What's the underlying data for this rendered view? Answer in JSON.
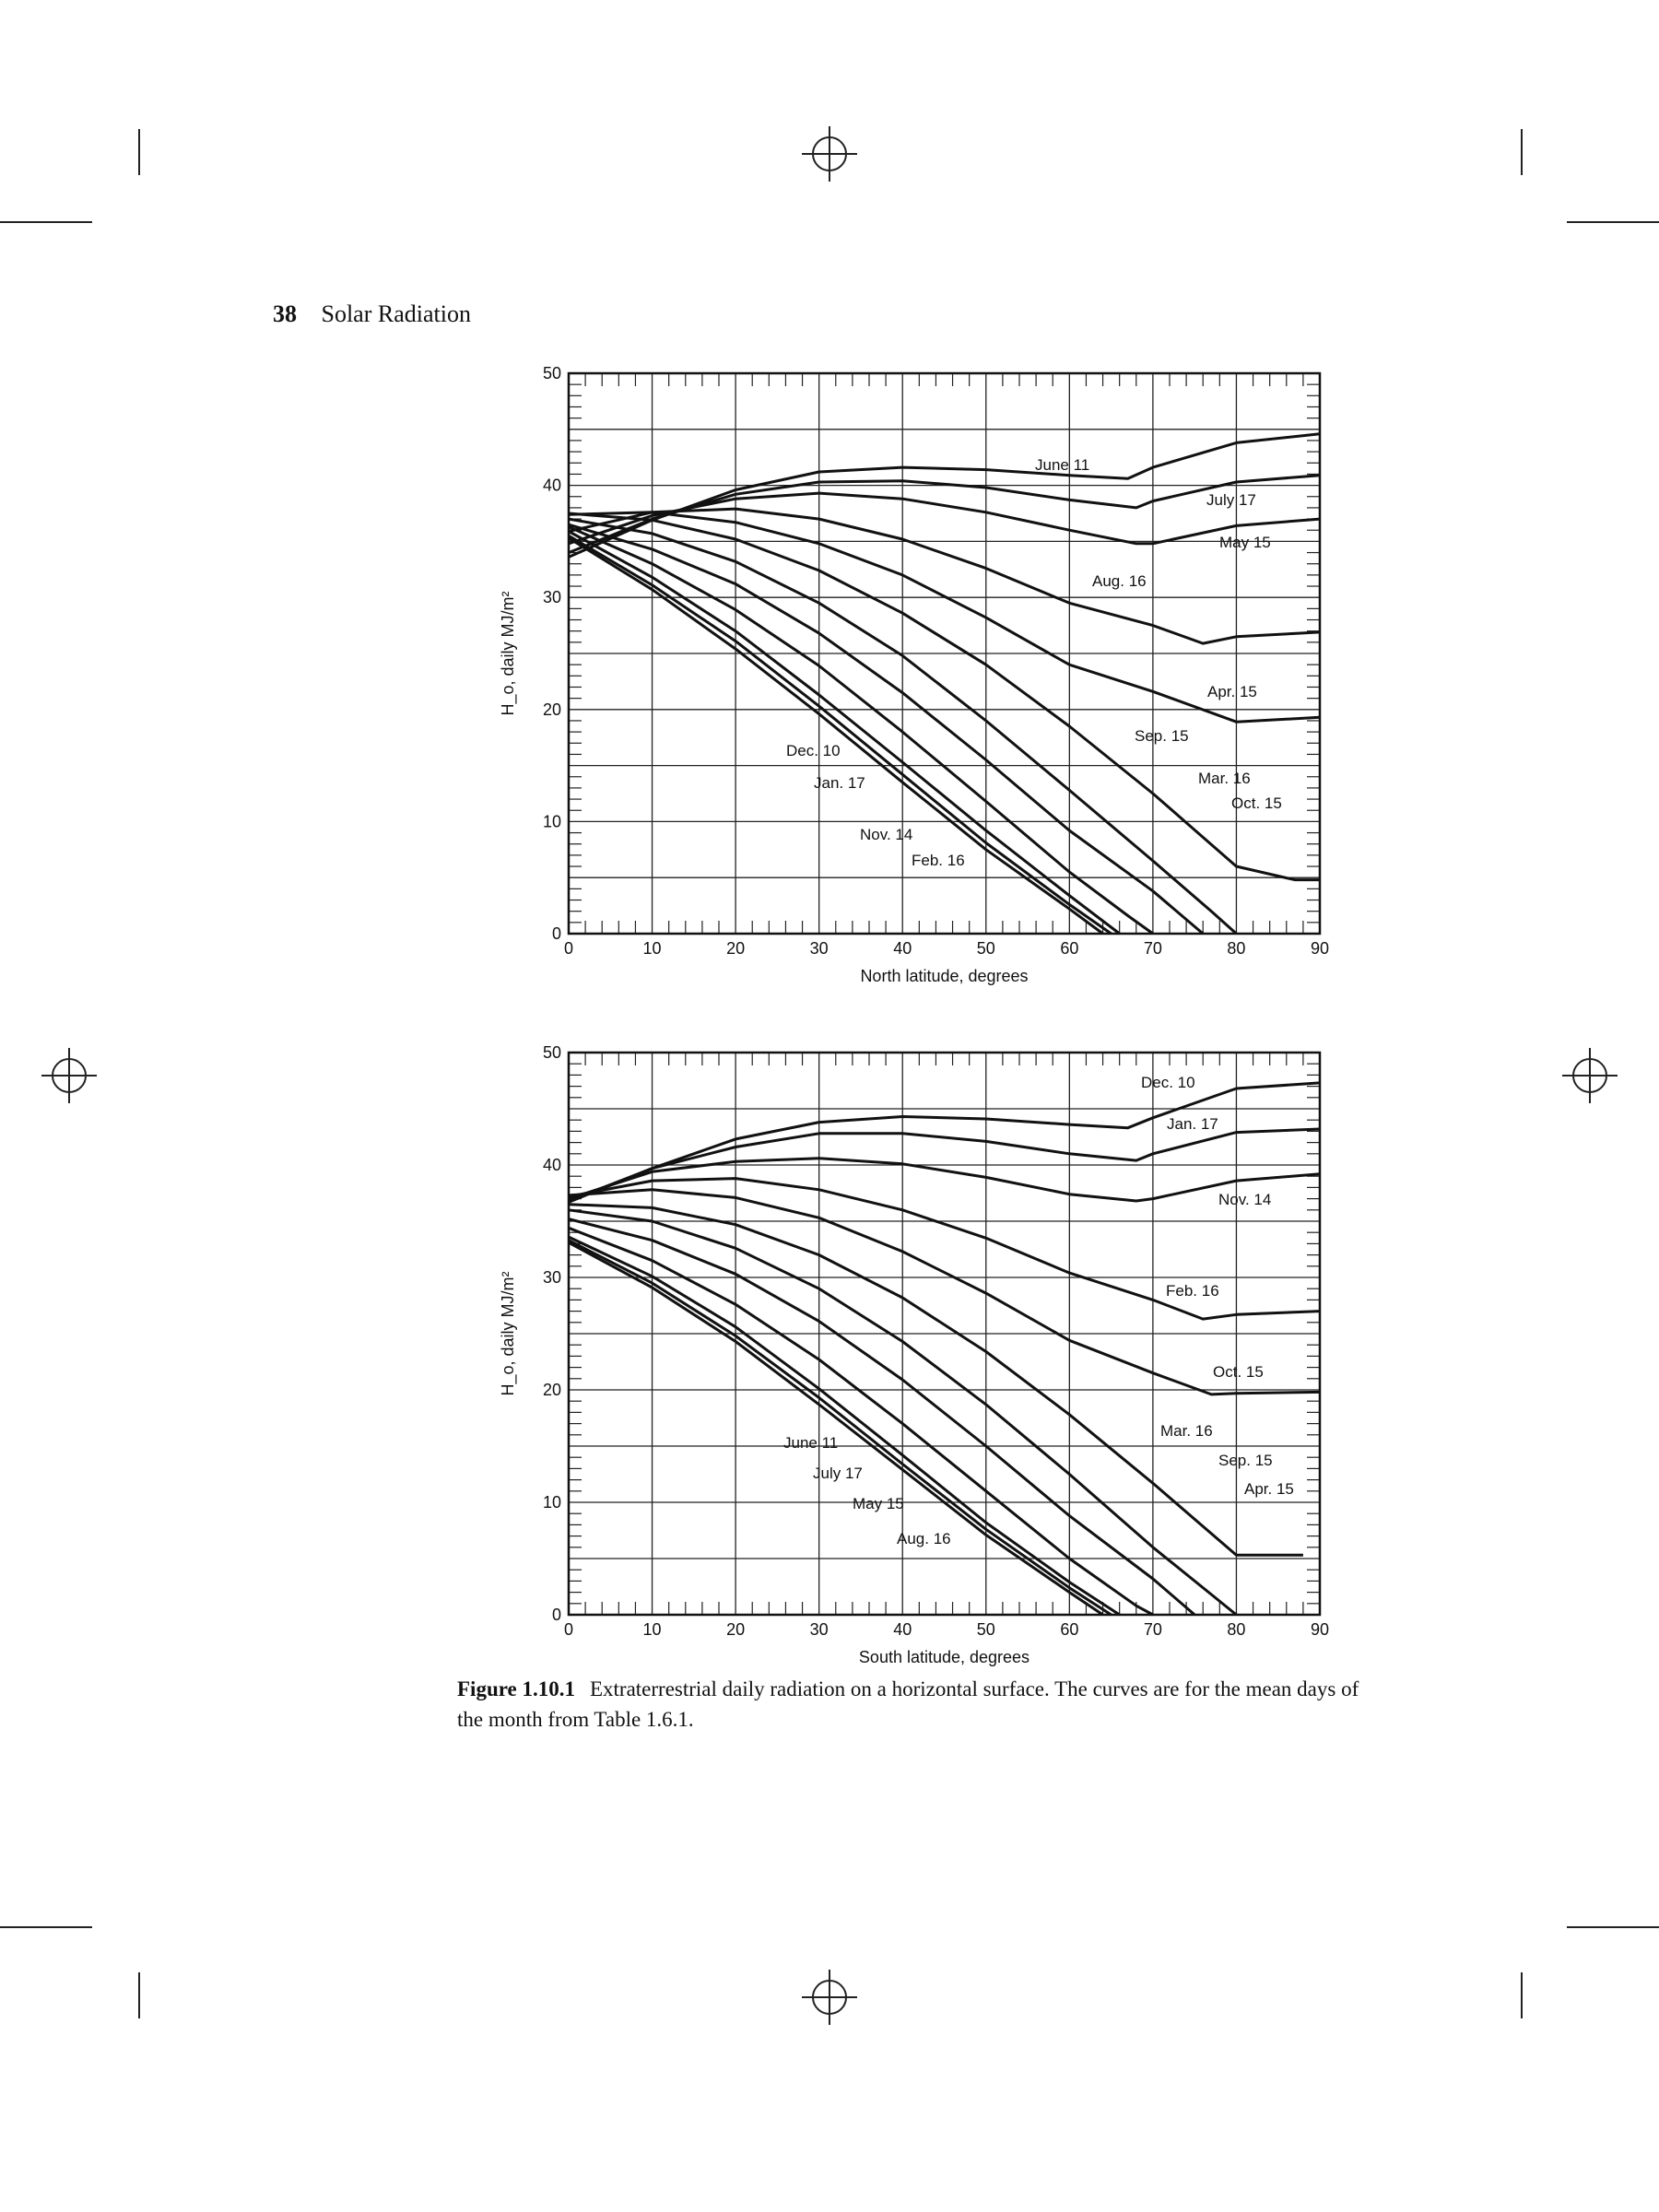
{
  "header": {
    "page_number": "38",
    "running_title": "Solar Radiation"
  },
  "caption": {
    "figure_label": "Figure 1.10.1",
    "text": "Extraterrestrial daily radiation on a horizontal surface. The curves are for the mean days of the month from Table 1.6.1."
  },
  "chart_data": [
    {
      "type": "line",
      "id": "north",
      "xlabel": "North latitude, degrees",
      "ylabel": "H_o, daily MJ/m²",
      "xlim": [
        0,
        90
      ],
      "ylim": [
        0,
        50
      ],
      "xticks": [
        0,
        10,
        20,
        30,
        40,
        50,
        60,
        70,
        80,
        90
      ],
      "yticks": [
        0,
        10,
        20,
        30,
        40,
        50
      ],
      "grid": true,
      "series": [
        {
          "name": "June 11",
          "points": [
            [
              0,
              33.6
            ],
            [
              10,
              36.9
            ],
            [
              20,
              39.6
            ],
            [
              30,
              41.2
            ],
            [
              40,
              41.6
            ],
            [
              50,
              41.4
            ],
            [
              60,
              40.9
            ],
            [
              67,
              40.6
            ],
            [
              70,
              41.6
            ],
            [
              80,
              43.8
            ],
            [
              90,
              44.6
            ]
          ]
        },
        {
          "name": "July 17",
          "points": [
            [
              0,
              34.0
            ],
            [
              10,
              37.0
            ],
            [
              20,
              39.2
            ],
            [
              30,
              40.3
            ],
            [
              40,
              40.4
            ],
            [
              50,
              39.8
            ],
            [
              60,
              38.7
            ],
            [
              68,
              38.0
            ],
            [
              70,
              38.6
            ],
            [
              80,
              40.3
            ],
            [
              90,
              40.9
            ]
          ]
        },
        {
          "name": "May 15",
          "points": [
            [
              0,
              34.8
            ],
            [
              10,
              37.3
            ],
            [
              20,
              38.8
            ],
            [
              30,
              39.3
            ],
            [
              40,
              38.8
            ],
            [
              50,
              37.6
            ],
            [
              60,
              36.0
            ],
            [
              68,
              34.8
            ],
            [
              70,
              34.8
            ],
            [
              80,
              36.4
            ],
            [
              90,
              37.0
            ]
          ]
        },
        {
          "name": "Aug. 16",
          "points": [
            [
              0,
              35.9
            ],
            [
              10,
              37.6
            ],
            [
              20,
              37.9
            ],
            [
              30,
              37.0
            ],
            [
              40,
              35.2
            ],
            [
              50,
              32.6
            ],
            [
              60,
              29.5
            ],
            [
              70,
              27.5
            ],
            [
              76,
              25.9
            ],
            [
              80,
              26.5
            ],
            [
              90,
              26.9
            ]
          ]
        },
        {
          "name": "Apr. 15",
          "points": [
            [
              0,
              37.4
            ],
            [
              10,
              37.6
            ],
            [
              20,
              36.7
            ],
            [
              30,
              34.8
            ],
            [
              40,
              32.0
            ],
            [
              50,
              28.2
            ],
            [
              60,
              24.0
            ],
            [
              70,
              21.6
            ],
            [
              80,
              18.9
            ],
            [
              90,
              19.3
            ]
          ]
        },
        {
          "name": "Sep. 15",
          "points": [
            [
              0,
              37.5
            ],
            [
              10,
              36.9
            ],
            [
              20,
              35.2
            ],
            [
              30,
              32.4
            ],
            [
              40,
              28.6
            ],
            [
              50,
              24.0
            ],
            [
              60,
              18.5
            ],
            [
              70,
              12.5
            ],
            [
              80,
              6.0
            ],
            [
              87,
              4.8
            ],
            [
              90,
              4.8
            ]
          ]
        },
        {
          "name": "Mar. 16",
          "points": [
            [
              0,
              37.0
            ],
            [
              10,
              35.7
            ],
            [
              20,
              33.2
            ],
            [
              30,
              29.5
            ],
            [
              40,
              24.8
            ],
            [
              50,
              19.0
            ],
            [
              60,
              12.8
            ],
            [
              70,
              6.5
            ],
            [
              77,
              2.0
            ],
            [
              80,
              0.0
            ]
          ]
        },
        {
          "name": "Oct. 15",
          "points": [
            [
              0,
              36.5
            ],
            [
              10,
              34.3
            ],
            [
              20,
              31.2
            ],
            [
              30,
              26.8
            ],
            [
              40,
              21.5
            ],
            [
              50,
              15.5
            ],
            [
              60,
              9.2
            ],
            [
              70,
              3.8
            ],
            [
              76,
              0.0
            ]
          ]
        },
        {
          "name": "Feb. 16",
          "points": [
            [
              0,
              36.3
            ],
            [
              10,
              33.0
            ],
            [
              20,
              28.9
            ],
            [
              30,
              23.9
            ],
            [
              40,
              18.0
            ],
            [
              50,
              11.8
            ],
            [
              60,
              5.5
            ],
            [
              67,
              1.6
            ],
            [
              70,
              0.0
            ]
          ]
        },
        {
          "name": "Nov. 14",
          "points": [
            [
              0,
              35.9
            ],
            [
              10,
              31.8
            ],
            [
              20,
              27.0
            ],
            [
              30,
              21.3
            ],
            [
              40,
              15.3
            ],
            [
              50,
              9.2
            ],
            [
              60,
              3.4
            ],
            [
              66,
              0.0
            ]
          ]
        },
        {
          "name": "Jan. 17",
          "points": [
            [
              0,
              35.5
            ],
            [
              10,
              31.1
            ],
            [
              20,
              26.1
            ],
            [
              30,
              20.3
            ],
            [
              40,
              14.2
            ],
            [
              50,
              8.1
            ],
            [
              60,
              2.6
            ],
            [
              65,
              0.0
            ]
          ]
        },
        {
          "name": "Dec. 10",
          "points": [
            [
              0,
              35.3
            ],
            [
              10,
              30.7
            ],
            [
              20,
              25.4
            ],
            [
              30,
              19.6
            ],
            [
              40,
              13.5
            ],
            [
              50,
              7.5
            ],
            [
              60,
              2.2
            ],
            [
              64,
              0.0
            ]
          ]
        }
      ]
    },
    {
      "type": "line",
      "id": "south",
      "xlabel": "South latitude, degrees",
      "ylabel": "H_o, daily MJ/m²",
      "xlim": [
        0,
        90
      ],
      "ylim": [
        0,
        50
      ],
      "xticks": [
        0,
        10,
        20,
        30,
        40,
        50,
        60,
        70,
        80,
        90
      ],
      "yticks": [
        0,
        10,
        20,
        30,
        40,
        50
      ],
      "grid": true,
      "series": [
        {
          "name": "Dec. 10",
          "points": [
            [
              0,
              36.7
            ],
            [
              10,
              39.7
            ],
            [
              20,
              42.3
            ],
            [
              30,
              43.8
            ],
            [
              40,
              44.3
            ],
            [
              50,
              44.1
            ],
            [
              60,
              43.6
            ],
            [
              67,
              43.3
            ],
            [
              70,
              44.2
            ],
            [
              80,
              46.8
            ],
            [
              90,
              47.3
            ]
          ]
        },
        {
          "name": "Jan. 17",
          "points": [
            [
              0,
              36.8
            ],
            [
              10,
              39.7
            ],
            [
              20,
              41.6
            ],
            [
              30,
              42.8
            ],
            [
              40,
              42.8
            ],
            [
              50,
              42.1
            ],
            [
              60,
              41.0
            ],
            [
              68,
              40.4
            ],
            [
              70,
              41.0
            ],
            [
              80,
              42.9
            ],
            [
              90,
              43.2
            ]
          ]
        },
        {
          "name": "Nov. 14",
          "points": [
            [
              0,
              37.0
            ],
            [
              10,
              39.4
            ],
            [
              20,
              40.3
            ],
            [
              30,
              40.6
            ],
            [
              40,
              40.1
            ],
            [
              50,
              38.9
            ],
            [
              60,
              37.4
            ],
            [
              68,
              36.8
            ],
            [
              70,
              37.0
            ],
            [
              80,
              38.6
            ],
            [
              90,
              39.2
            ]
          ]
        },
        {
          "name": "Feb. 16",
          "points": [
            [
              0,
              37.2
            ],
            [
              10,
              38.6
            ],
            [
              20,
              38.8
            ],
            [
              30,
              37.8
            ],
            [
              40,
              36.0
            ],
            [
              50,
              33.5
            ],
            [
              60,
              30.4
            ],
            [
              70,
              28.0
            ],
            [
              76,
              26.3
            ],
            [
              80,
              26.7
            ],
            [
              90,
              27.0
            ]
          ]
        },
        {
          "name": "Oct. 15",
          "points": [
            [
              0,
              37.3
            ],
            [
              10,
              37.8
            ],
            [
              20,
              37.1
            ],
            [
              30,
              35.3
            ],
            [
              40,
              32.3
            ],
            [
              50,
              28.6
            ],
            [
              60,
              24.4
            ],
            [
              70,
              21.5
            ],
            [
              77,
              19.6
            ],
            [
              80,
              19.7
            ],
            [
              90,
              19.8
            ]
          ]
        },
        {
          "name": "Mar. 16",
          "points": [
            [
              0,
              36.5
            ],
            [
              10,
              36.2
            ],
            [
              20,
              34.7
            ],
            [
              30,
              32.0
            ],
            [
              40,
              28.2
            ],
            [
              50,
              23.4
            ],
            [
              60,
              17.8
            ],
            [
              70,
              11.7
            ],
            [
              80,
              5.3
            ],
            [
              88,
              5.3
            ]
          ]
        },
        {
          "name": "Sep. 15",
          "points": [
            [
              0,
              36.0
            ],
            [
              10,
              35.0
            ],
            [
              20,
              32.6
            ],
            [
              30,
              29.0
            ],
            [
              40,
              24.3
            ],
            [
              50,
              18.7
            ],
            [
              60,
              12.5
            ],
            [
              70,
              6.0
            ],
            [
              77,
              1.8
            ],
            [
              80,
              0.0
            ]
          ]
        },
        {
          "name": "Apr. 15",
          "points": [
            [
              0,
              35.2
            ],
            [
              10,
              33.3
            ],
            [
              20,
              30.3
            ],
            [
              30,
              26.1
            ],
            [
              40,
              20.9
            ],
            [
              50,
              15.0
            ],
            [
              60,
              8.8
            ],
            [
              70,
              3.2
            ],
            [
              75,
              0.0
            ]
          ]
        },
        {
          "name": "Aug. 16",
          "points": [
            [
              0,
              34.4
            ],
            [
              10,
              31.5
            ],
            [
              20,
              27.6
            ],
            [
              30,
              22.7
            ],
            [
              40,
              17.0
            ],
            [
              50,
              11.0
            ],
            [
              60,
              5.0
            ],
            [
              68,
              0.8
            ],
            [
              70,
              0.0
            ]
          ]
        },
        {
          "name": "May 15",
          "points": [
            [
              0,
              33.6
            ],
            [
              10,
              30.1
            ],
            [
              20,
              25.6
            ],
            [
              30,
              20.1
            ],
            [
              40,
              14.2
            ],
            [
              50,
              8.2
            ],
            [
              60,
              2.9
            ],
            [
              66,
              0.0
            ]
          ]
        },
        {
          "name": "July 17",
          "points": [
            [
              0,
              33.3
            ],
            [
              10,
              29.5
            ],
            [
              20,
              24.8
            ],
            [
              30,
              19.3
            ],
            [
              40,
              13.4
            ],
            [
              50,
              7.6
            ],
            [
              60,
              2.4
            ],
            [
              65,
              0.0
            ]
          ]
        },
        {
          "name": "June 11",
          "points": [
            [
              0,
              33.1
            ],
            [
              10,
              29.1
            ],
            [
              20,
              24.3
            ],
            [
              30,
              18.7
            ],
            [
              40,
              12.9
            ],
            [
              50,
              7.1
            ],
            [
              60,
              2.0
            ],
            [
              64,
              0.0
            ]
          ]
        }
      ]
    }
  ]
}
